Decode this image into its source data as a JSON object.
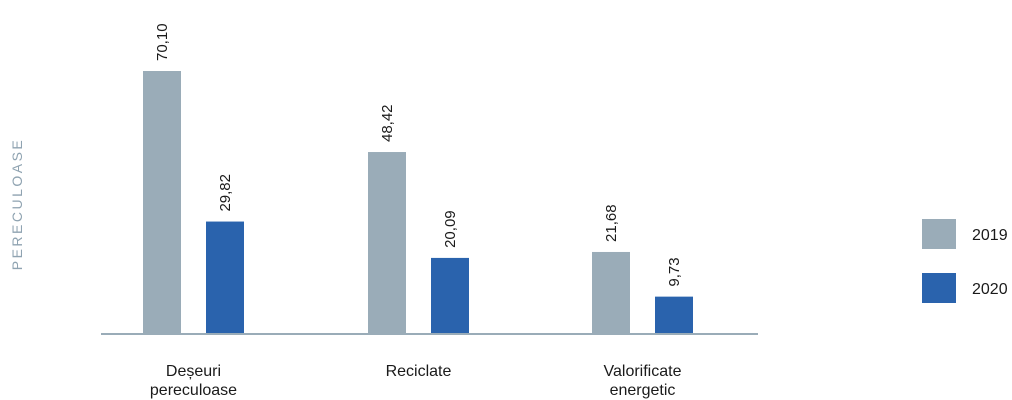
{
  "chart_data": {
    "type": "bar",
    "ylabel": "PERECULOASE",
    "categories": [
      [
        "Deșeuri",
        "pereculoase"
      ],
      [
        "Reciclate"
      ],
      [
        "Valorificate",
        "energetic"
      ]
    ],
    "series": [
      {
        "name": "2019",
        "values": [
          70.1,
          48.42,
          21.68
        ],
        "labels": [
          "70,10",
          "48,42",
          "21,68"
        ],
        "color": "#9aacb8"
      },
      {
        "name": "2020",
        "values": [
          29.82,
          20.09,
          9.73
        ],
        "labels": [
          "29,82",
          "20,09",
          "9,73"
        ],
        "color": "#2a63ad"
      }
    ],
    "ylim": [
      0,
      70.1
    ],
    "grid": false,
    "legend_position": "right",
    "colors": {
      "axis": "#9aacb8",
      "ylabel": "#8fa3b1"
    }
  }
}
